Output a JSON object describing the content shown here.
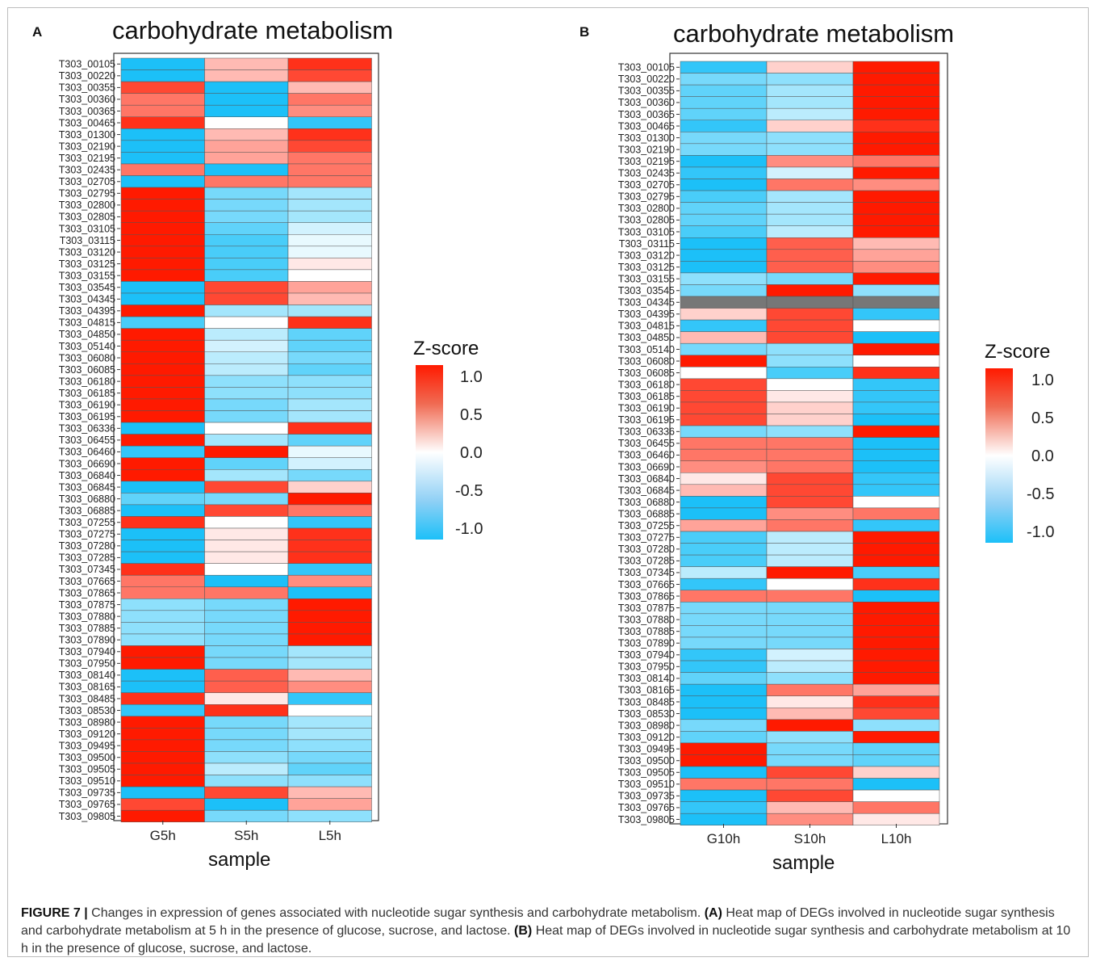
{
  "caption": {
    "label": "FIGURE 7 |",
    "text1": " Changes in expression of genes associated with nucleotide sugar synthesis and carbohydrate metabolism. ",
    "a_ref": "(A)",
    "text2": " Heat map of DEGs involved in nucleotide sugar synthesis and carbohydrate metabolism at 5 h in the presence of glucose, sucrose, and lactose. ",
    "b_ref": "(B)",
    "text3": " Heat map of DEGs involved in nucleotide sugar synthesis and carbohydrate metabolism at 10 h in the presence of glucose, sucrose, and lactose."
  },
  "colors": {
    "high": "#ff1a00",
    "mid": "#ffffff",
    "low": "#1cc0f8",
    "missing": "#777777"
  },
  "chart_data": [
    {
      "panel": "A",
      "type": "heatmap",
      "title": "carbohydrate metabolism",
      "xlabel": "sample",
      "ylabel": "",
      "columns": [
        "G5h",
        "S5h",
        "L5h"
      ],
      "rows": [
        "T303_00105",
        "T303_00220",
        "T303_00355",
        "T303_00360",
        "T303_00365",
        "T303_00465",
        "T303_01300",
        "T303_02190",
        "T303_02195",
        "T303_02435",
        "T303_02705",
        "T303_02795",
        "T303_02800",
        "T303_02805",
        "T303_03105",
        "T303_03115",
        "T303_03120",
        "T303_03125",
        "T303_03155",
        "T303_03545",
        "T303_04345",
        "T303_04395",
        "T303_04815",
        "T303_04850",
        "T303_05140",
        "T303_06080",
        "T303_06085",
        "T303_06180",
        "T303_06185",
        "T303_06190",
        "T303_06195",
        "T303_06336",
        "T303_06455",
        "T303_06460",
        "T303_06690",
        "T303_06840",
        "T303_06845",
        "T303_06880",
        "T303_06885",
        "T303_07255",
        "T303_07275",
        "T303_07280",
        "T303_07285",
        "T303_07345",
        "T303_07665",
        "T303_07865",
        "T303_07875",
        "T303_07880",
        "T303_07885",
        "T303_07890",
        "T303_07940",
        "T303_07950",
        "T303_08140",
        "T303_08165",
        "T303_08485",
        "T303_08530",
        "T303_08980",
        "T303_09120",
        "T303_09495",
        "T303_09500",
        "T303_09505",
        "T303_09510",
        "T303_09735",
        "T303_09765",
        "T303_09805"
      ],
      "values": [
        [
          -1.0,
          0.3,
          0.9
        ],
        [
          -1.0,
          0.3,
          0.8
        ],
        [
          0.8,
          -1.0,
          0.3
        ],
        [
          0.6,
          -1.0,
          0.6
        ],
        [
          0.6,
          -1.0,
          0.5
        ],
        [
          0.9,
          0.0,
          -0.9
        ],
        [
          -1.0,
          0.3,
          0.9
        ],
        [
          -1.0,
          0.4,
          0.8
        ],
        [
          -1.0,
          0.4,
          0.6
        ],
        [
          0.6,
          -1.0,
          0.6
        ],
        [
          -1.0,
          0.6,
          0.6
        ],
        [
          1.1,
          -0.6,
          -0.4
        ],
        [
          1.1,
          -0.6,
          -0.4
        ],
        [
          1.1,
          -0.6,
          -0.4
        ],
        [
          1.0,
          -0.7,
          -0.2
        ],
        [
          1.0,
          -0.8,
          -0.1
        ],
        [
          1.0,
          -0.8,
          -0.1
        ],
        [
          1.0,
          -0.8,
          0.1
        ],
        [
          1.0,
          -0.8,
          0.0
        ],
        [
          -1.0,
          0.8,
          0.4
        ],
        [
          -1.0,
          0.8,
          0.3
        ],
        [
          1.1,
          -0.4,
          -0.4
        ],
        [
          -0.8,
          0.0,
          0.9
        ],
        [
          1.1,
          -0.3,
          -0.7
        ],
        [
          1.1,
          -0.2,
          -0.7
        ],
        [
          1.1,
          -0.3,
          -0.6
        ],
        [
          1.1,
          -0.3,
          -0.7
        ],
        [
          1.1,
          -0.5,
          -0.5
        ],
        [
          1.1,
          -0.5,
          -0.5
        ],
        [
          1.1,
          -0.6,
          -0.4
        ],
        [
          1.1,
          -0.6,
          -0.4
        ],
        [
          -1.0,
          0.0,
          0.9
        ],
        [
          1.1,
          -0.4,
          -0.7
        ],
        [
          -0.9,
          1.0,
          -0.1
        ],
        [
          1.0,
          -0.7,
          -0.2
        ],
        [
          1.0,
          -0.4,
          -0.6
        ],
        [
          -1.0,
          0.8,
          0.2
        ],
        [
          -0.7,
          -0.6,
          1.2
        ],
        [
          -1.0,
          0.8,
          0.6
        ],
        [
          0.9,
          0.0,
          -0.9
        ],
        [
          -1.0,
          0.1,
          0.9
        ],
        [
          -1.0,
          0.1,
          0.9
        ],
        [
          -1.0,
          0.1,
          0.9
        ],
        [
          0.9,
          0.0,
          -0.9
        ],
        [
          0.6,
          -1.0,
          0.5
        ],
        [
          0.6,
          0.6,
          -1.0
        ],
        [
          -0.5,
          -0.6,
          1.2
        ],
        [
          -0.5,
          -0.6,
          1.2
        ],
        [
          -0.5,
          -0.6,
          1.2
        ],
        [
          -0.5,
          -0.6,
          1.2
        ],
        [
          1.1,
          -0.6,
          -0.4
        ],
        [
          1.1,
          -0.6,
          -0.4
        ],
        [
          -1.0,
          0.7,
          0.3
        ],
        [
          -1.0,
          0.7,
          0.5
        ],
        [
          0.9,
          0.1,
          -0.9
        ],
        [
          -0.9,
          0.9,
          0.0
        ],
        [
          1.1,
          -0.6,
          -0.4
        ],
        [
          1.1,
          -0.6,
          -0.4
        ],
        [
          1.1,
          -0.6,
          -0.5
        ],
        [
          1.1,
          -0.5,
          -0.6
        ],
        [
          1.1,
          -0.3,
          -0.7
        ],
        [
          1.1,
          -0.5,
          -0.5
        ],
        [
          -1.0,
          0.8,
          0.3
        ],
        [
          0.8,
          -1.0,
          0.4
        ],
        [
          1.2,
          -0.6,
          -0.5
        ]
      ],
      "legend": {
        "title": "Z-score",
        "ticks": [
          "1.0",
          "0.5",
          "0.0",
          "-0.5",
          "-1.0"
        ],
        "placement": "right",
        "range": [
          -1.0,
          1.0
        ]
      }
    },
    {
      "panel": "B",
      "type": "heatmap",
      "title": "carbohydrate metabolism",
      "xlabel": "sample",
      "ylabel": "",
      "columns": [
        "G10h",
        "S10h",
        "L10h"
      ],
      "rows": [
        "T303_00105",
        "T303_00220",
        "T303_00355",
        "T303_00360",
        "T303_00365",
        "T303_00465",
        "T303_01300",
        "T303_02190",
        "T303_02195",
        "T303_02435",
        "T303_02705",
        "T303_02795",
        "T303_02800",
        "T303_02805",
        "T303_03105",
        "T303_03115",
        "T303_03120",
        "T303_03125",
        "T303_03155",
        "T303_03545",
        "T303_04345",
        "T303_04395",
        "T303_04815",
        "T303_04850",
        "T303_05140",
        "T303_06080",
        "T303_06085",
        "T303_06180",
        "T303_06185",
        "T303_06190",
        "T303_06195",
        "T303_06336",
        "T303_06455",
        "T303_06460",
        "T303_06690",
        "T303_06840",
        "T303_06845",
        "T303_06880",
        "T303_06885",
        "T303_07255",
        "T303_07275",
        "T303_07280",
        "T303_07285",
        "T303_07345",
        "T303_07665",
        "T303_07865",
        "T303_07875",
        "T303_07880",
        "T303_07885",
        "T303_07890",
        "T303_07940",
        "T303_07950",
        "T303_08140",
        "T303_08165",
        "T303_08485",
        "T303_08530",
        "T303_08980",
        "T303_09120",
        "T303_09495",
        "T303_09500",
        "T303_09505",
        "T303_09510",
        "T303_09735",
        "T303_09765",
        "T303_09805"
      ],
      "values": [
        [
          -0.9,
          0.2,
          1.1
        ],
        [
          -0.6,
          -0.5,
          1.1
        ],
        [
          -0.7,
          -0.4,
          1.2
        ],
        [
          -0.7,
          -0.4,
          1.2
        ],
        [
          -0.7,
          -0.3,
          1.1
        ],
        [
          -0.9,
          0.2,
          0.9
        ],
        [
          -0.6,
          -0.5,
          1.1
        ],
        [
          -0.6,
          -0.5,
          1.1
        ],
        [
          -1.0,
          0.5,
          0.6
        ],
        [
          -0.9,
          -0.2,
          1.0
        ],
        [
          -1.0,
          0.6,
          0.5
        ],
        [
          -0.8,
          -0.4,
          1.1
        ],
        [
          -0.7,
          -0.4,
          1.1
        ],
        [
          -0.7,
          -0.4,
          1.1
        ],
        [
          -0.8,
          -0.3,
          1.1
        ],
        [
          -1.0,
          0.7,
          0.3
        ],
        [
          -1.0,
          0.7,
          0.4
        ],
        [
          -1.0,
          0.7,
          0.5
        ],
        [
          -0.5,
          -0.6,
          1.2
        ],
        [
          -0.6,
          1.2,
          -0.5
        ],
        [
          null,
          null,
          null
        ],
        [
          0.2,
          0.8,
          -0.9
        ],
        [
          -0.9,
          0.8,
          0.0
        ],
        [
          0.3,
          0.8,
          -1.0
        ],
        [
          -0.6,
          -0.5,
          1.2
        ],
        [
          1.1,
          -0.5,
          0.0
        ],
        [
          0.0,
          -0.8,
          0.9
        ],
        [
          0.8,
          0.0,
          -0.9
        ],
        [
          0.8,
          0.1,
          -0.9
        ],
        [
          0.8,
          0.2,
          -0.9
        ],
        [
          0.8,
          0.2,
          -1.0
        ],
        [
          -0.6,
          -0.5,
          1.2
        ],
        [
          0.6,
          0.6,
          -1.1
        ],
        [
          0.6,
          0.6,
          -1.1
        ],
        [
          0.5,
          0.6,
          -1.1
        ],
        [
          0.1,
          0.8,
          -0.9
        ],
        [
          0.3,
          0.8,
          -0.9
        ],
        [
          -1.0,
          0.8,
          0.0
        ],
        [
          -1.0,
          0.5,
          0.6
        ],
        [
          0.4,
          0.6,
          -0.9
        ],
        [
          -0.8,
          -0.3,
          1.1
        ],
        [
          -0.8,
          -0.3,
          1.1
        ],
        [
          -0.8,
          -0.3,
          1.1
        ],
        [
          -0.3,
          1.2,
          -0.8
        ],
        [
          -0.9,
          0.0,
          0.9
        ],
        [
          0.6,
          0.6,
          -1.1
        ],
        [
          -0.6,
          -0.6,
          1.2
        ],
        [
          -0.6,
          -0.6,
          1.2
        ],
        [
          -0.6,
          -0.6,
          1.2
        ],
        [
          -0.6,
          -0.6,
          1.2
        ],
        [
          -0.9,
          -0.2,
          1.0
        ],
        [
          -0.9,
          -0.3,
          1.0
        ],
        [
          -0.7,
          -0.5,
          1.1
        ],
        [
          -1.0,
          0.6,
          0.4
        ],
        [
          -1.0,
          0.1,
          0.9
        ],
        [
          -1.0,
          0.3,
          0.8
        ],
        [
          -0.6,
          1.2,
          -0.5
        ],
        [
          -0.7,
          -0.5,
          1.2
        ],
        [
          1.2,
          -0.6,
          -0.7
        ],
        [
          1.2,
          -0.6,
          -0.7
        ],
        [
          -1.0,
          0.8,
          0.2
        ],
        [
          0.6,
          0.6,
          -1.1
        ],
        [
          -1.0,
          0.8,
          0.0
        ],
        [
          -0.9,
          0.3,
          0.6
        ],
        [
          -1.0,
          0.5,
          0.1
        ]
      ],
      "legend": {
        "title": "Z-score",
        "ticks": [
          "1.0",
          "0.5",
          "0.0",
          "-0.5",
          "-1.0"
        ],
        "placement": "right",
        "range": [
          -1.0,
          1.0
        ]
      }
    }
  ]
}
